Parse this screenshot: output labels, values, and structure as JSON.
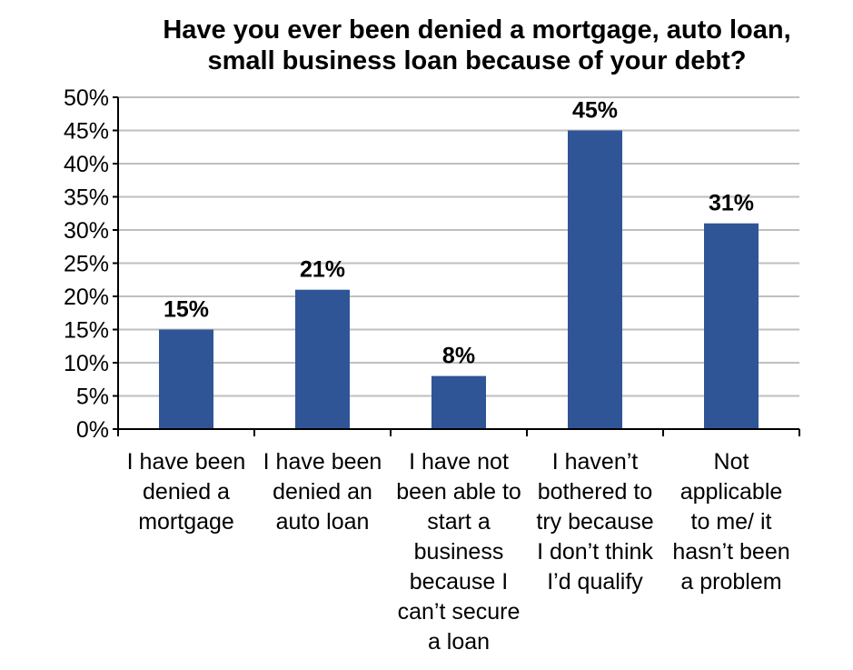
{
  "chart_data": {
    "type": "bar",
    "title": "Have you ever been denied a mortgage, auto loan,\nsmall business loan because of your debt?",
    "categories": [
      [
        "I have been",
        "denied a",
        "mortgage"
      ],
      [
        "I have been",
        "denied an",
        "auto loan"
      ],
      [
        "I have not",
        "been able to",
        "start a",
        "business",
        "because I",
        "can’t secure",
        "a loan"
      ],
      [
        "I haven’t",
        "bothered to",
        "try because",
        "I don’t think",
        "I’d qualify"
      ],
      [
        "Not",
        "applicable",
        "to me/ it",
        "hasn’t been",
        "a problem"
      ]
    ],
    "values": [
      15,
      21,
      8,
      45,
      31
    ],
    "data_labels": [
      "15%",
      "21%",
      "8%",
      "45%",
      "31%"
    ],
    "y_ticks": [
      "0%",
      "5%",
      "10%",
      "15%",
      "20%",
      "25%",
      "30%",
      "35%",
      "40%",
      "45%",
      "50%"
    ],
    "ylim": [
      0,
      50
    ],
    "xlabel": "",
    "ylabel": "",
    "grid": true,
    "bar_color": "#2F5597"
  }
}
